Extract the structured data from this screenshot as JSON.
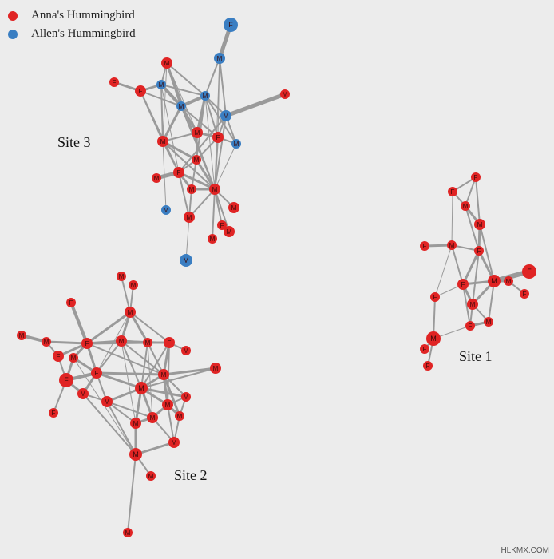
{
  "legend": {
    "anna_label": "Anna's Hummingbird",
    "allen_label": "Allen's Hummingbird"
  },
  "colors": {
    "anna": "#e02424",
    "allen": "#3a7ec2",
    "edge": "#9a9a9a"
  },
  "sites": {
    "site1": "Site 1",
    "site2": "Site 2",
    "site3": "Site 3"
  },
  "watermark": "HLKMX.COM"
}
